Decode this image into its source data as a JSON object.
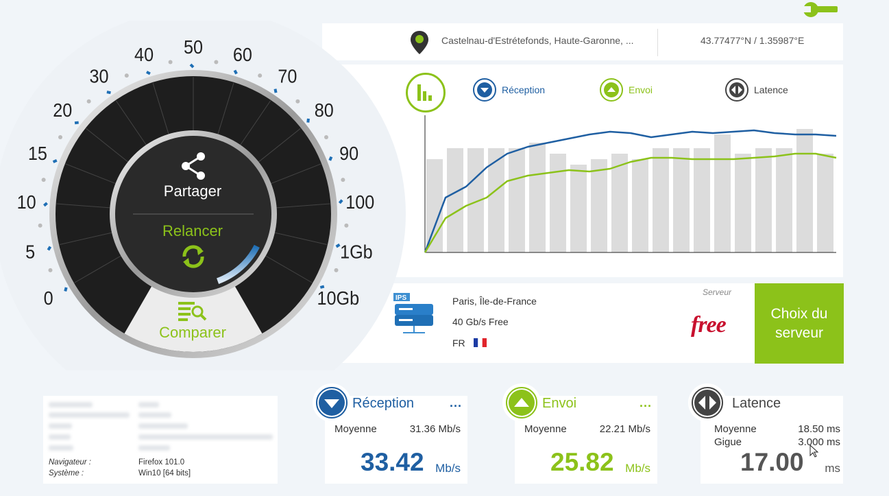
{
  "top": {
    "settings_icon": "wrench-icon"
  },
  "location": {
    "place": "Castelnau-d'Estrétefonds, Haute-Garonne, ...",
    "coords": "43.77477°N / 1.35987°E",
    "pin_icon": "map-pin-icon"
  },
  "legend": {
    "reception": "Réception",
    "envoi": "Envoi",
    "latence": "Latence"
  },
  "colors": {
    "blue": "#1f5fa2",
    "green": "#8cc21a",
    "dark": "#444444",
    "bar": "#dcdcdc",
    "gauge_bg": "#1e1e1e"
  },
  "chart_data": {
    "type": "line",
    "x": [
      0,
      1,
      2,
      3,
      4,
      5,
      6,
      7,
      8,
      9,
      10,
      11,
      12,
      13,
      14,
      15,
      16,
      17,
      18,
      19,
      20
    ],
    "series": [
      {
        "name": "Réception",
        "values": [
          0,
          40,
          48,
          62,
          72,
          77,
          80,
          83,
          86,
          88,
          87,
          84,
          86,
          88,
          87,
          88,
          89,
          87,
          86,
          86,
          85
        ]
      },
      {
        "name": "Envoi",
        "values": [
          0,
          25,
          34,
          40,
          52,
          56,
          58,
          60,
          59,
          61,
          66,
          69,
          69,
          68,
          68,
          68,
          69,
          70,
          72,
          72,
          69
        ]
      }
    ],
    "bars": [
      68,
      76,
      76,
      76,
      76,
      80,
      72,
      64,
      68,
      72,
      68,
      76,
      76,
      76,
      86,
      72,
      76,
      76,
      90,
      72
    ],
    "ylim": [
      0,
      100
    ]
  },
  "gauge": {
    "ticks": [
      "0",
      "5",
      "10",
      "15",
      "20",
      "30",
      "40",
      "50",
      "60",
      "70",
      "80",
      "90",
      "100",
      "1Gb",
      "10Gb"
    ],
    "share_label": "Partager",
    "share_icon": "share-icon",
    "rerun_label": "Relancer",
    "rerun_icon": "refresh-icon",
    "compare_label": "Comparer",
    "compare_icon": "compare-icon",
    "progress": 0.2
  },
  "server": {
    "label": "Serveur",
    "city": "Paris, Île-de-France",
    "name": "40 Gb/s Free",
    "country": "FR",
    "provider_logo": "free",
    "ips_badge": "IPS",
    "choice_label": "Choix du serveur"
  },
  "sysinfo": {
    "browser_key": "Navigateur :",
    "browser_val": "Firefox 101.0",
    "system_key": "Système :",
    "system_val": "Win10 [64 bits]"
  },
  "cards": {
    "reception": {
      "title": "Réception",
      "more": "...",
      "avg_label": "Moyenne",
      "avg_value": "31.36 Mb/s",
      "big": "33.42",
      "unit": "Mb/s"
    },
    "envoi": {
      "title": "Envoi",
      "more": "...",
      "avg_label": "Moyenne",
      "avg_value": "22.21 Mb/s",
      "big": "25.82",
      "unit": "Mb/s"
    },
    "latence": {
      "title": "Latence",
      "avg_label": "Moyenne",
      "avg_value": "18.50 ms",
      "jitter_label": "Gigue",
      "jitter_value": "3.000 ms",
      "big": "17.00",
      "unit": "ms"
    }
  }
}
